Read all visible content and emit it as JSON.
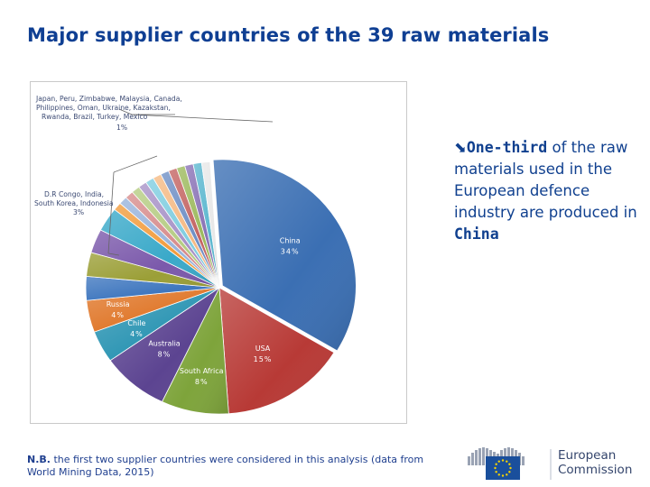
{
  "slide": {
    "title": "Major supplier countries of the 39 raw materials",
    "callout": {
      "arrow": "⬊",
      "bold_lead": "One-third",
      "text_mid": " of the raw materials used in the European defence industry are produced in ",
      "bold_tail": "China"
    },
    "note": {
      "bold": "N.B.",
      "text": " the first two supplier countries were considered in this analysis (data from World Mining Data, 2015)"
    },
    "logo": {
      "line1": "European",
      "line2": "Commission"
    },
    "colors": {
      "title": "#0f3f93",
      "callout": "#10408f",
      "eu_blue": "#1a4f9c",
      "eu_star": "#f6d300"
    }
  },
  "chart_data": {
    "type": "pie",
    "title": "",
    "slices": [
      {
        "label": "China",
        "value": 34,
        "value_label": "34%",
        "color": "#3b6fb3"
      },
      {
        "label": "USA",
        "value": 15,
        "value_label": "15%",
        "color": "#b83a36"
      },
      {
        "label": "South Africa",
        "value": 8,
        "value_label": "8%",
        "color": "#7ea43b"
      },
      {
        "label": "Australia",
        "value": 8,
        "value_label": "8%",
        "color": "#5c4491"
      },
      {
        "label": "Chile",
        "value": 4,
        "value_label": "4%",
        "color": "#2e96b4"
      },
      {
        "label": "Russia",
        "value": 4,
        "value_label": "4%",
        "color": "#e0782b"
      },
      {
        "label": "D.R Congo",
        "value": 3,
        "value_label": "",
        "color": "#3f77bf"
      },
      {
        "label": "India",
        "value": 3,
        "value_label": "",
        "color": "#9b9f37"
      },
      {
        "label": "South Korea",
        "value": 3,
        "value_label": "",
        "color": "#7b59ab"
      },
      {
        "label": "Indonesia",
        "value": 3,
        "value_label": "",
        "color": "#3aa9c9"
      },
      {
        "label": "Japan",
        "value": 1,
        "value_label": "",
        "color": "#f29c3d"
      },
      {
        "label": "Peru",
        "value": 1,
        "value_label": "",
        "color": "#98b3db"
      },
      {
        "label": "Zimbabwe",
        "value": 1,
        "value_label": "",
        "color": "#d78c8c"
      },
      {
        "label": "Malaysia",
        "value": 1,
        "value_label": "",
        "color": "#b5cc82"
      },
      {
        "label": "Canada",
        "value": 1,
        "value_label": "",
        "color": "#a792c7"
      },
      {
        "label": "Philippines",
        "value": 1,
        "value_label": "",
        "color": "#7fcde0"
      },
      {
        "label": "Oman",
        "value": 1,
        "value_label": "",
        "color": "#f5ba84"
      },
      {
        "label": "Ukraine",
        "value": 1,
        "value_label": "",
        "color": "#6f8fc5"
      },
      {
        "label": "Kazakstan",
        "value": 1,
        "value_label": "",
        "color": "#c46563"
      },
      {
        "label": "Rwanda",
        "value": 1,
        "value_label": "",
        "color": "#9dba5e"
      },
      {
        "label": "Brazil",
        "value": 1,
        "value_label": "",
        "color": "#8a73b6"
      },
      {
        "label": "Turkey",
        "value": 1,
        "value_label": "",
        "color": "#5db8d0"
      },
      {
        "label": "Mexico",
        "value": 1,
        "value_label": "",
        "color": "#e8e8e8"
      }
    ],
    "group_labels": [
      {
        "lines": [
          "Japan, Peru, Zimbabwe, Malaysia, Canada,",
          "Philippines, Oman, Ukraine, Kazakstan,",
          "Rwanda, Brazil, Turkey, Mexico"
        ],
        "value_label": "1%"
      },
      {
        "lines": [
          "D.R Congo, India,",
          "South Korea, Indonesia"
        ],
        "value_label": "3%"
      }
    ]
  }
}
